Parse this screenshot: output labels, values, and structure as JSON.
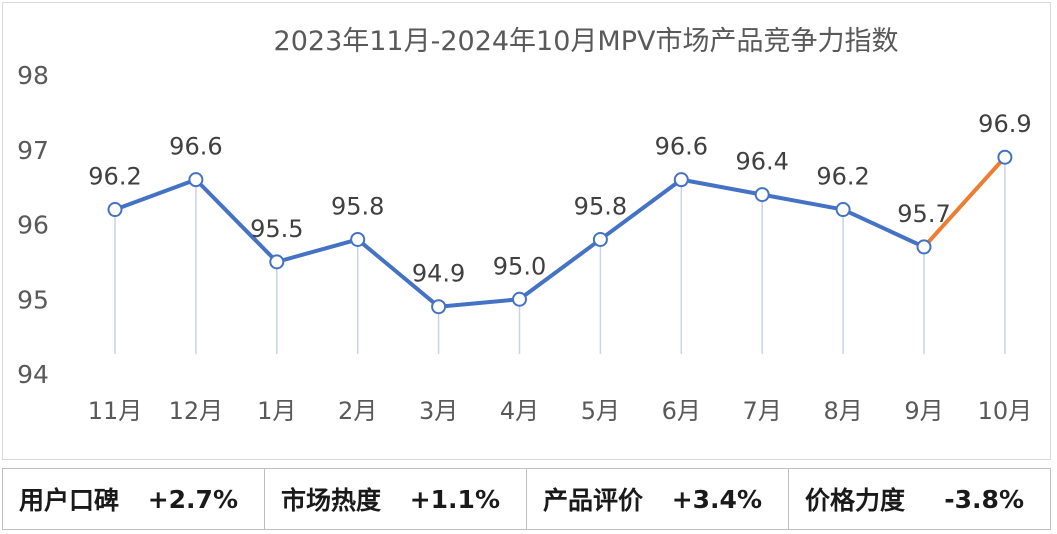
{
  "chart_data": {
    "type": "line",
    "title": "2023年11月-2024年10月MPV市场产品竞争力指数",
    "categories": [
      "11月",
      "12月",
      "1月",
      "2月",
      "3月",
      "4月",
      "5月",
      "6月",
      "7月",
      "8月",
      "9月",
      "10月"
    ],
    "values": [
      96.2,
      96.6,
      95.5,
      95.8,
      94.9,
      95.0,
      95.8,
      96.6,
      96.4,
      96.2,
      95.7,
      96.9
    ],
    "value_labels": [
      "96.2",
      "96.6",
      "95.5",
      "95.8",
      "94.9",
      "95.0",
      "95.8",
      "96.6",
      "96.4",
      "96.2",
      "95.7",
      "96.9"
    ],
    "ylim": [
      94,
      98
    ],
    "yticks": [
      94,
      95,
      96,
      97,
      98
    ],
    "xlabel": "",
    "ylabel": "",
    "grid": false,
    "colors": {
      "line": "#4472c4",
      "last_segment": "#ed7d31",
      "drop_line": "#c8d3e8",
      "marker_fill": "#ffffff",
      "text": "#595959"
    }
  },
  "metrics": [
    {
      "label": "用户口碑",
      "value": "+2.7%"
    },
    {
      "label": "市场热度",
      "value": "+1.1%"
    },
    {
      "label": "产品评价",
      "value": "+3.4%"
    },
    {
      "label": "价格力度",
      "value": "-3.8%"
    }
  ]
}
